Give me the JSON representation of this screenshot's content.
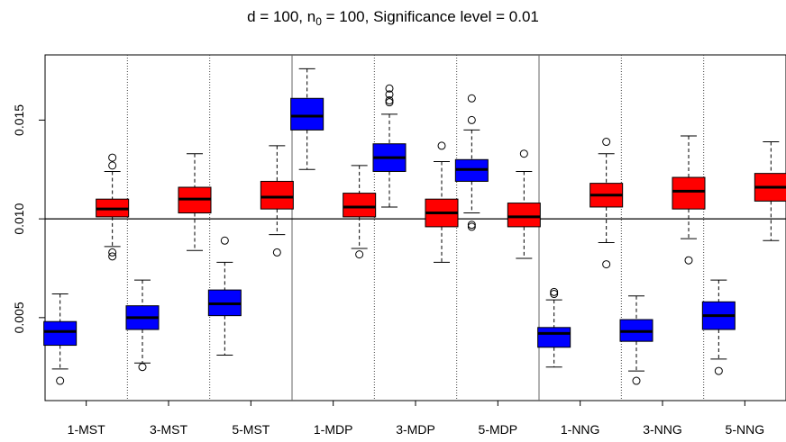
{
  "chart_data": {
    "type": "boxplot",
    "title_parts": {
      "before": "d = 100, n",
      "subscript": "0",
      "after": " = 100, Significance level = 0.01"
    },
    "categories": [
      "1-MST",
      "3-MST",
      "5-MST",
      "1-MDP",
      "3-MDP",
      "5-MDP",
      "1-NNG",
      "3-NNG",
      "5-NNG"
    ],
    "ylim": [
      0.0008,
      0.0183
    ],
    "yticks": [
      "0.005",
      "0.010",
      "0.015"
    ],
    "ytick_values": [
      0.005,
      0.01,
      0.015
    ],
    "reference_line": 0.01,
    "series": [
      {
        "color": "#0000ff",
        "boxes": [
          {
            "min": 0.0024,
            "q1": 0.0036,
            "median": 0.0043,
            "q3": 0.0048,
            "max": 0.0062,
            "outliers": [
              0.0018
            ]
          },
          {
            "min": 0.0027,
            "q1": 0.0044,
            "median": 0.005,
            "q3": 0.0056,
            "max": 0.0069,
            "outliers": [
              0.0025
            ]
          },
          {
            "min": 0.0031,
            "q1": 0.0051,
            "median": 0.0057,
            "q3": 0.0064,
            "max": 0.0078,
            "outliers": [
              0.0089
            ]
          },
          {
            "min": 0.0125,
            "q1": 0.0145,
            "median": 0.0152,
            "q3": 0.0161,
            "max": 0.0176,
            "outliers": []
          },
          {
            "min": 0.0106,
            "q1": 0.0124,
            "median": 0.0131,
            "q3": 0.0138,
            "max": 0.0153,
            "outliers": [
              0.0159,
              0.016,
              0.0163,
              0.0166
            ]
          },
          {
            "min": 0.0103,
            "q1": 0.0119,
            "median": 0.0125,
            "q3": 0.013,
            "max": 0.0145,
            "outliers": [
              0.0097,
              0.0096,
              0.015,
              0.0161
            ]
          },
          {
            "min": 0.0025,
            "q1": 0.0035,
            "median": 0.0042,
            "q3": 0.0045,
            "max": 0.0059,
            "outliers": [
              0.0062,
              0.0063
            ]
          },
          {
            "min": 0.0023,
            "q1": 0.0038,
            "median": 0.0043,
            "q3": 0.0049,
            "max": 0.0061,
            "outliers": [
              0.0018
            ]
          },
          {
            "min": 0.0029,
            "q1": 0.0044,
            "median": 0.0051,
            "q3": 0.0058,
            "max": 0.0069,
            "outliers": [
              0.0023
            ]
          }
        ]
      },
      {
        "color": "#ff0000",
        "boxes": [
          {
            "min": 0.0086,
            "q1": 0.0101,
            "median": 0.0105,
            "q3": 0.011,
            "max": 0.0124,
            "outliers": [
              0.0081,
              0.0083,
              0.0127,
              0.0131
            ]
          },
          {
            "min": 0.0084,
            "q1": 0.0103,
            "median": 0.011,
            "q3": 0.0116,
            "max": 0.0133,
            "outliers": []
          },
          {
            "min": 0.0092,
            "q1": 0.0105,
            "median": 0.0111,
            "q3": 0.0119,
            "max": 0.0137,
            "outliers": [
              0.0083
            ]
          },
          {
            "min": 0.0085,
            "q1": 0.0101,
            "median": 0.0106,
            "q3": 0.0113,
            "max": 0.0127,
            "outliers": [
              0.0082
            ]
          },
          {
            "min": 0.0078,
            "q1": 0.0096,
            "median": 0.0103,
            "q3": 0.011,
            "max": 0.0129,
            "outliers": [
              0.0137
            ]
          },
          {
            "min": 0.008,
            "q1": 0.0096,
            "median": 0.0101,
            "q3": 0.0108,
            "max": 0.0124,
            "outliers": [
              0.0133
            ]
          },
          {
            "min": 0.0088,
            "q1": 0.0106,
            "median": 0.0112,
            "q3": 0.0118,
            "max": 0.0133,
            "outliers": [
              0.0077,
              0.0139
            ]
          },
          {
            "min": 0.009,
            "q1": 0.0105,
            "median": 0.0114,
            "q3": 0.0121,
            "max": 0.0142,
            "outliers": [
              0.0079
            ]
          },
          {
            "min": 0.0089,
            "q1": 0.0109,
            "median": 0.0116,
            "q3": 0.0123,
            "max": 0.0139,
            "outliers": []
          }
        ]
      }
    ],
    "group_separators": "solid line between method families (MST | MDP | NNG), dotted lines between other categories",
    "grid": false
  }
}
